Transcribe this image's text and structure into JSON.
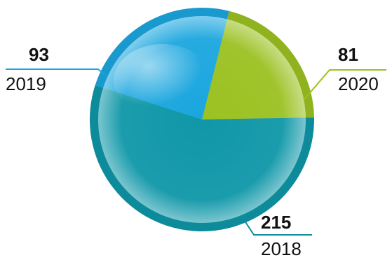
{
  "chart_data": {
    "type": "pie",
    "title": "",
    "categories": [
      "2020",
      "2018",
      "2019"
    ],
    "values": [
      81,
      215,
      93
    ],
    "colors": [
      "#9bc121",
      "#0f97a8",
      "#1ba6df"
    ],
    "legend": "none"
  },
  "labels": {
    "2020": {
      "value": "81",
      "category": "2020"
    },
    "2018": {
      "value": "215",
      "category": "2018"
    },
    "2019": {
      "value": "93",
      "category": "2019"
    }
  }
}
